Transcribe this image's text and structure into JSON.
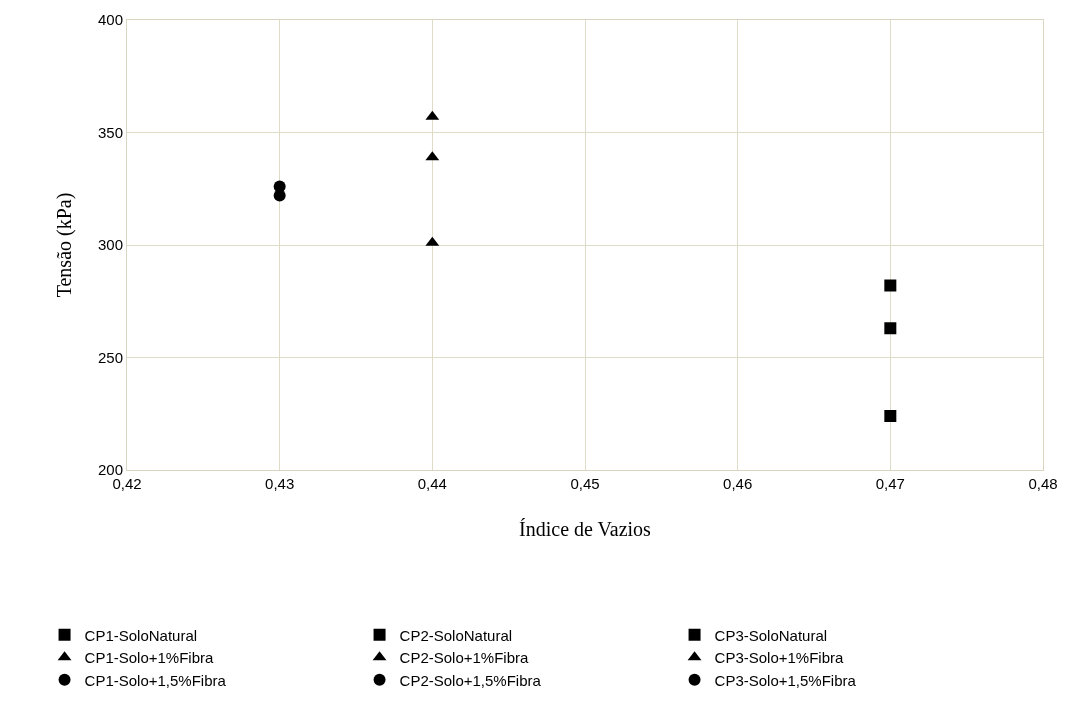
{
  "chart_data": {
    "type": "scatter",
    "xlabel": "Índice de Vazios",
    "ylabel": "Tensão (kPa)",
    "xlim": [
      0.42,
      0.48
    ],
    "xticks": [
      {
        "value": 0.42,
        "label": "0,42"
      },
      {
        "value": 0.43,
        "label": "0,43"
      },
      {
        "value": 0.44,
        "label": "0,44"
      },
      {
        "value": 0.45,
        "label": "0,45"
      },
      {
        "value": 0.46,
        "label": "0,46"
      },
      {
        "value": 0.47,
        "label": "0,47"
      },
      {
        "value": 0.48,
        "label": "0,48"
      }
    ],
    "ylim": [
      200,
      400
    ],
    "yticks": [
      200,
      250,
      300,
      350,
      400
    ],
    "grid": true,
    "legend": "bottom",
    "series": [
      {
        "name": "CP1-SoloNatural",
        "color": "#000000",
        "marker": "square",
        "x": [
          0.47
        ],
        "values": [
          282
        ]
      },
      {
        "name": "CP2-SoloNatural",
        "color": "#000000",
        "marker": "square",
        "x": [
          0.47
        ],
        "values": [
          263
        ]
      },
      {
        "name": "CP3-SoloNatural",
        "color": "#000000",
        "marker": "square",
        "x": [
          0.47
        ],
        "values": [
          224
        ]
      },
      {
        "name": "CP1-Solo+1%Fibra",
        "color": "#000000",
        "marker": "triangle",
        "x": [
          0.44
        ],
        "values": [
          357
        ]
      },
      {
        "name": "CP2-Solo+1%Fibra",
        "color": "#000000",
        "marker": "triangle",
        "x": [
          0.44
        ],
        "values": [
          339
        ]
      },
      {
        "name": "CP3-Solo+1%Fibra",
        "color": "#000000",
        "marker": "triangle",
        "x": [
          0.44
        ],
        "values": [
          301
        ]
      },
      {
        "name": "CP1-Solo+1,5%Fibra",
        "color": "#000000",
        "marker": "circle",
        "x": [
          0.43
        ],
        "values": [
          326
        ]
      },
      {
        "name": "CP2-Solo+1,5%Fibra",
        "color": "#000000",
        "marker": "circle",
        "x": [
          0.43
        ],
        "values": [
          322
        ]
      },
      {
        "name": "CP3-Solo+1,5%Fibra",
        "color": "#000000",
        "marker": "circle",
        "x": [
          null
        ],
        "values": [
          null
        ]
      }
    ]
  }
}
